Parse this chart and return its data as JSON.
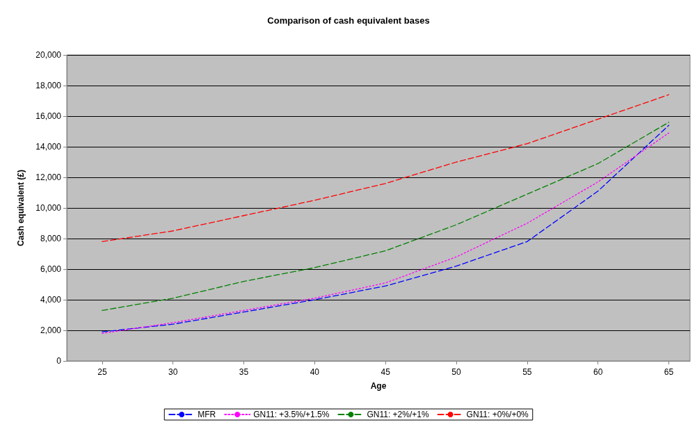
{
  "chart_data": {
    "type": "line",
    "title": "Comparison of cash equivalent bases",
    "xlabel": "Age",
    "ylabel": "Cash equivalent (£)",
    "x": [
      25,
      30,
      35,
      40,
      45,
      50,
      55,
      60,
      65
    ],
    "xlim": [
      22.5,
      66.5
    ],
    "xticks": [
      25,
      30,
      35,
      40,
      45,
      50,
      55,
      60,
      65
    ],
    "ylim": [
      0,
      20000
    ],
    "yticks": [
      {
        "value": 0,
        "label": "0"
      },
      {
        "value": 2000,
        "label": "2,000"
      },
      {
        "value": 4000,
        "label": "4,000"
      },
      {
        "value": 6000,
        "label": "6,000"
      },
      {
        "value": 8000,
        "label": "8,000"
      },
      {
        "value": 10000,
        "label": "10,000"
      },
      {
        "value": 12000,
        "label": "12,000"
      },
      {
        "value": 14000,
        "label": "14,000"
      },
      {
        "value": 16000,
        "label": "16,000"
      },
      {
        "value": 18000,
        "label": "18,000"
      },
      {
        "value": 20000,
        "label": "20,000"
      }
    ],
    "grid": "y",
    "legend": "bottom",
    "marker": "none",
    "series": [
      {
        "name": "MFR",
        "color": "#0000ff",
        "line_style": "dashed",
        "values": [
          1900,
          2400,
          3200,
          4000,
          4900,
          6200,
          7800,
          11100,
          15400
        ]
      },
      {
        "name": "GN11: +3.5%/+1.5%",
        "color": "#ff00ff",
        "line_style": "dotted",
        "values": [
          1800,
          2500,
          3300,
          4100,
          5100,
          6800,
          9000,
          11700,
          14900
        ]
      },
      {
        "name": "GN11: +2%/+1%",
        "color": "#008000",
        "line_style": "dashed",
        "values": [
          3300,
          4100,
          5200,
          6100,
          7200,
          8900,
          10900,
          12900,
          15600
        ]
      },
      {
        "name": "GN11: +0%/+0%",
        "color": "#ff0000",
        "line_style": "dashed",
        "values": [
          7800,
          8500,
          9500,
          10500,
          11600,
          13000,
          14200,
          15800,
          17400
        ]
      }
    ]
  }
}
